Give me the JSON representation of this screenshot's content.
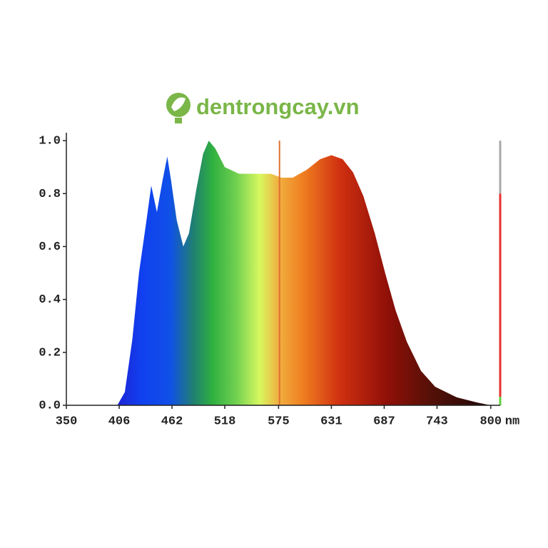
{
  "watermark": "dentrongcay.vn",
  "chart_data": {
    "type": "area",
    "x_unit": "nm",
    "x": [
      350,
      400,
      404,
      412,
      420,
      427,
      435,
      440,
      446,
      452,
      457,
      461,
      467,
      474,
      480,
      488,
      495,
      501,
      508,
      518,
      533,
      552,
      567,
      578,
      590,
      605,
      619,
      631,
      643,
      654,
      665,
      677,
      688,
      699,
      711,
      726,
      741,
      764,
      786,
      800
    ],
    "values": [
      0,
      0,
      0,
      0.05,
      0.25,
      0.5,
      0.7,
      0.83,
      0.73,
      0.85,
      0.94,
      0.85,
      0.7,
      0.6,
      0.65,
      0.82,
      0.95,
      1.0,
      0.97,
      0.9,
      0.875,
      0.875,
      0.875,
      0.86,
      0.86,
      0.89,
      0.93,
      0.945,
      0.93,
      0.88,
      0.79,
      0.65,
      0.5,
      0.36,
      0.24,
      0.13,
      0.07,
      0.03,
      0.01,
      0
    ],
    "colorscale": [
      [
        400,
        "#2020d0"
      ],
      [
        430,
        "#1040f0"
      ],
      [
        460,
        "#1050e8"
      ],
      [
        485,
        "#208070"
      ],
      [
        505,
        "#30b040"
      ],
      [
        530,
        "#70d050"
      ],
      [
        555,
        "#d8f860"
      ],
      [
        575,
        "#f0b040"
      ],
      [
        600,
        "#f08020"
      ],
      [
        640,
        "#d03010"
      ],
      [
        690,
        "#901008"
      ],
      [
        740,
        "#501008"
      ],
      [
        800,
        "#200808"
      ]
    ],
    "cursor_x": 576,
    "cursor_color": "#e07030",
    "indicator_value": 0.8,
    "xlim": [
      350,
      810
    ],
    "ylim": [
      0,
      1.03
    ],
    "xticks": [
      350,
      406,
      462,
      518,
      575,
      631,
      687,
      743,
      800
    ],
    "yticks": [
      {
        "value": 0,
        "label": "0.0"
      },
      0.2,
      0.4,
      0.6,
      0.8,
      {
        "value": 1,
        "label": "1.0"
      }
    ]
  }
}
